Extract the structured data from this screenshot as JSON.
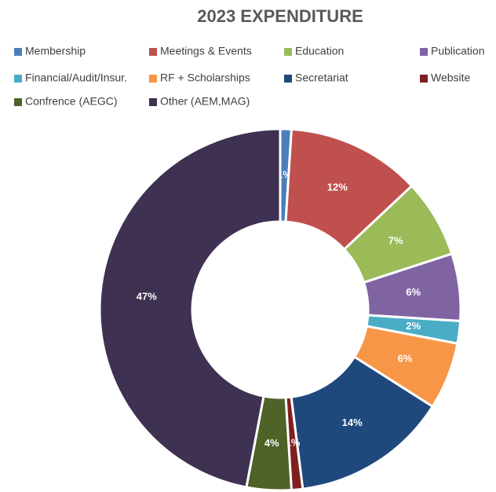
{
  "chart_data": {
    "type": "pie",
    "title": "2023 EXPENDITURE",
    "donut": true,
    "categories": [
      "Membership",
      "Meetings & Events",
      "Education",
      "Publication",
      "Financial/Audit/Insur.",
      "RF + Scholarships",
      "Secretariat",
      "Website",
      "Confrence (AEGC)",
      "Other (AEM,MAG)"
    ],
    "values": [
      1,
      12,
      7,
      6,
      2,
      6,
      14,
      1,
      4,
      47
    ],
    "value_labels": [
      "1%",
      "12%",
      "7%",
      "6%",
      "2%",
      "6%",
      "14%",
      "1%",
      "4%",
      "47%"
    ],
    "colors": [
      "#4a7ebb",
      "#c0504d",
      "#9bbb59",
      "#8064a2",
      "#4bacc6",
      "#f79646",
      "#1f497d",
      "#7f1f1f",
      "#4f6228",
      "#3f3151"
    ]
  }
}
